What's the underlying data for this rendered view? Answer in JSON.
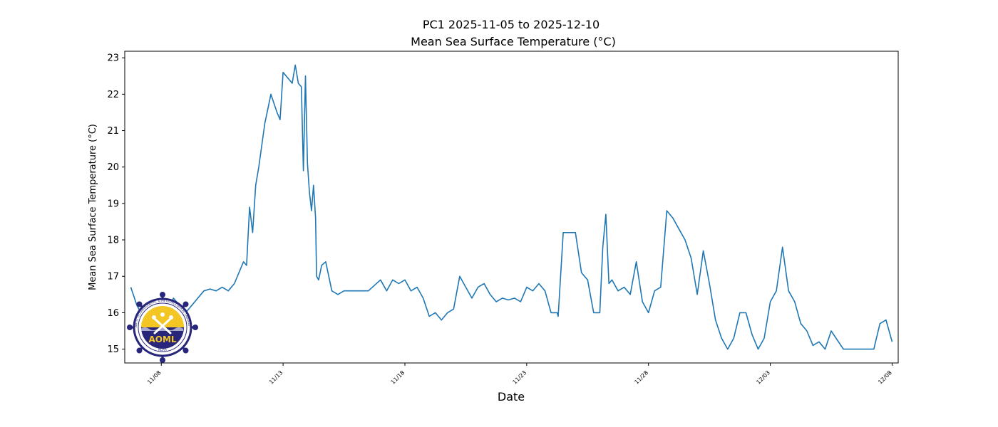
{
  "chart_data": {
    "type": "line",
    "title": "PC1 2025-11-05 to 2025-12-10",
    "subtitle": "Mean Sea Surface Temperature (°C)",
    "xlabel": "Date",
    "ylabel": "Mean Sea Surface Temperature (°C)",
    "xlim": [
      "2025-11-06 12:00",
      "2025-12-08 06:00"
    ],
    "ylim": [
      14.62,
      23.18
    ],
    "yticks": [
      15,
      16,
      17,
      18,
      19,
      20,
      21,
      22,
      23
    ],
    "xticks": [
      {
        "date": "2025-11-08",
        "label": "11/08"
      },
      {
        "date": "2025-11-13",
        "label": "11/13"
      },
      {
        "date": "2025-11-18",
        "label": "11/18"
      },
      {
        "date": "2025-11-23",
        "label": "11/23"
      },
      {
        "date": "2025-11-28",
        "label": "11/28"
      },
      {
        "date": "2025-12-03",
        "label": "12/03"
      },
      {
        "date": "2025-12-08",
        "label": "12/08"
      }
    ],
    "grid": false,
    "line_color": "#1f77b4",
    "series": [
      {
        "x": [
          "2025-11-06 18:00",
          "2025-11-07 00:00",
          "2025-11-07 06:00",
          "2025-11-07 12:00",
          "2025-11-07 18:00",
          "2025-11-08 00:00",
          "2025-11-08 06:00",
          "2025-11-08 12:00",
          "2025-11-08 18:00",
          "2025-11-09 00:00",
          "2025-11-09 06:00",
          "2025-11-09 12:00",
          "2025-11-09 18:00",
          "2025-11-10 00:00",
          "2025-11-10 06:00",
          "2025-11-10 12:00",
          "2025-11-10 18:00",
          "2025-11-11 00:00",
          "2025-11-11 06:00",
          "2025-11-11 09:00",
          "2025-11-11 12:00",
          "2025-11-11 15:00",
          "2025-11-11 18:00",
          "2025-11-11 21:00",
          "2025-11-12 00:00",
          "2025-11-12 06:00",
          "2025-11-12 09:00",
          "2025-11-12 12:00",
          "2025-11-12 18:00",
          "2025-11-12 21:00",
          "2025-11-13 00:00",
          "2025-11-13 06:00",
          "2025-11-13 09:00",
          "2025-11-13 12:00",
          "2025-11-13 15:00",
          "2025-11-13 18:00",
          "2025-11-13 20:00",
          "2025-11-13 22:00",
          "2025-11-14 00:00",
          "2025-11-14 02:00",
          "2025-11-14 04:00",
          "2025-11-14 06:00",
          "2025-11-14 08:00",
          "2025-11-14 09:00",
          "2025-11-14 11:00",
          "2025-11-14 14:00",
          "2025-11-14 18:00",
          "2025-11-15 00:00",
          "2025-11-15 06:00",
          "2025-11-15 12:00",
          "2025-11-15 18:00",
          "2025-11-16 00:00",
          "2025-11-16 12:00",
          "2025-11-17 00:00",
          "2025-11-17 06:00",
          "2025-11-17 12:00",
          "2025-11-17 18:00",
          "2025-11-18 00:00",
          "2025-11-18 06:00",
          "2025-11-18 12:00",
          "2025-11-18 18:00",
          "2025-11-19 00:00",
          "2025-11-19 06:00",
          "2025-11-19 12:00",
          "2025-11-19 18:00",
          "2025-11-20 00:00",
          "2025-11-20 06:00",
          "2025-11-20 12:00",
          "2025-11-20 18:00",
          "2025-11-21 00:00",
          "2025-11-21 06:00",
          "2025-11-21 12:00",
          "2025-11-21 18:00",
          "2025-11-22 00:00",
          "2025-11-22 06:00",
          "2025-11-22 12:00",
          "2025-11-22 18:00",
          "2025-11-23 00:00",
          "2025-11-23 06:00",
          "2025-11-23 12:00",
          "2025-11-23 18:00",
          "2025-11-24 00:00",
          "2025-11-24 06:00",
          "2025-11-24 07:00",
          "2025-11-24 12:00",
          "2025-11-24 18:00",
          "2025-11-25 00:00",
          "2025-11-25 06:00",
          "2025-11-25 12:00",
          "2025-11-25 18:00",
          "2025-11-26 00:00",
          "2025-11-26 03:00",
          "2025-11-26 06:00",
          "2025-11-26 09:00",
          "2025-11-26 12:00",
          "2025-11-26 18:00",
          "2025-11-27 00:00",
          "2025-11-27 06:00",
          "2025-11-27 12:00",
          "2025-11-27 18:00",
          "2025-11-28 00:00",
          "2025-11-28 06:00",
          "2025-11-28 12:00",
          "2025-11-28 18:00",
          "2025-11-29 00:00",
          "2025-11-29 06:00",
          "2025-11-29 12:00",
          "2025-11-29 18:00",
          "2025-11-30 00:00",
          "2025-11-30 06:00",
          "2025-11-30 12:00",
          "2025-11-30 18:00",
          "2025-12-01 00:00",
          "2025-12-01 06:00",
          "2025-12-01 12:00",
          "2025-12-01 18:00",
          "2025-12-02 00:00",
          "2025-12-02 06:00",
          "2025-12-02 12:00",
          "2025-12-02 18:00",
          "2025-12-03 00:00",
          "2025-12-03 06:00",
          "2025-12-03 12:00",
          "2025-12-03 18:00",
          "2025-12-04 00:00",
          "2025-12-04 06:00",
          "2025-12-04 12:00",
          "2025-12-04 18:00",
          "2025-12-05 00:00",
          "2025-12-05 06:00",
          "2025-12-05 12:00",
          "2025-12-06 00:00",
          "2025-12-06 12:00",
          "2025-12-07 00:00",
          "2025-12-07 06:00",
          "2025-12-07 12:00",
          "2025-12-07 18:00",
          "2025-12-08 00:00"
        ],
        "y": [
          16.7,
          16.2,
          15.9,
          16.0,
          16.1,
          16.3,
          16.0,
          16.4,
          16.2,
          16.0,
          16.2,
          16.4,
          16.6,
          16.65,
          16.6,
          16.7,
          16.6,
          16.8,
          17.2,
          17.4,
          17.3,
          18.9,
          18.2,
          19.5,
          20.0,
          21.2,
          21.6,
          22.0,
          21.5,
          21.3,
          22.6,
          22.4,
          22.3,
          22.8,
          22.3,
          22.2,
          19.9,
          22.5,
          20.1,
          19.3,
          18.8,
          19.5,
          18.6,
          17.0,
          16.9,
          17.3,
          17.4,
          16.6,
          16.5,
          16.6,
          16.6,
          16.6,
          16.6,
          16.9,
          16.6,
          16.9,
          16.8,
          16.9,
          16.6,
          16.7,
          16.4,
          15.9,
          16.0,
          15.8,
          16.0,
          16.1,
          17.0,
          16.7,
          16.4,
          16.7,
          16.8,
          16.5,
          16.3,
          16.4,
          16.35,
          16.4,
          16.3,
          16.7,
          16.6,
          16.8,
          16.6,
          16.0,
          16.0,
          15.9,
          18.2,
          18.2,
          18.2,
          17.1,
          16.9,
          16.0,
          16.0,
          17.8,
          18.7,
          16.8,
          16.9,
          16.6,
          16.7,
          16.5,
          17.4,
          16.3,
          16.0,
          16.6,
          16.7,
          18.8,
          18.6,
          18.3,
          18.0,
          17.5,
          16.5,
          17.7,
          16.8,
          15.8,
          15.3,
          15.0,
          15.3,
          16.0,
          16.0,
          15.4,
          15.0,
          15.3,
          16.3,
          16.6,
          17.8,
          16.6,
          16.3,
          15.7,
          15.5,
          15.1,
          15.2,
          15.0,
          15.5,
          15.0,
          15.0,
          15.0,
          15.0,
          15.7,
          15.8,
          15.2
        ]
      }
    ]
  },
  "logo": {
    "text": "AOML",
    "ring_text": "ATLANTIC OCEANOGRAPHIC & METEOROLOGICAL LABORATORY",
    "bottom_text": "NOAA",
    "colors": {
      "ring": "#27267a",
      "sun": "#f3c623",
      "sea": "#27267a",
      "symbol": "#ffffff"
    }
  }
}
